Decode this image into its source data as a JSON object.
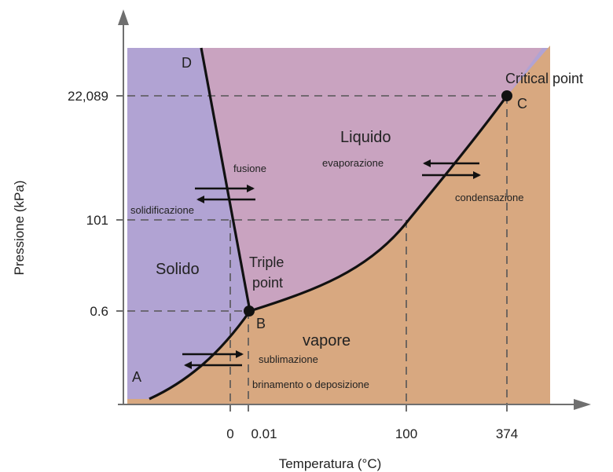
{
  "colors": {
    "solid": "#b1a3d3",
    "liquid": "#c9a3c0",
    "vapor": "#d8a880",
    "curve": "#111111",
    "dashed": "#555555",
    "axis": "#6f6f6f"
  },
  "axes": {
    "xlabel": "Temperatura (°C)",
    "ylabel": "Pressione (kPa)",
    "x_ticks": [
      "0",
      "0.01",
      "100",
      "374"
    ],
    "y_ticks": [
      "22,089",
      "101",
      "0.6"
    ]
  },
  "regions": {
    "solid": "Solido",
    "liquid": "Liquido",
    "vapor": "vapore"
  },
  "points": {
    "A": "A",
    "B": "B",
    "C": "C",
    "D": "D",
    "triple_1": "Triple",
    "triple_2": "point",
    "critical": "Critical point"
  },
  "transitions": {
    "fusion": "fusione",
    "solidification": "solidificazione",
    "evaporation": "evaporazione",
    "condensation": "condensazione",
    "sublimation": "sublimazione",
    "deposition": "brinamento o deposizione"
  }
}
